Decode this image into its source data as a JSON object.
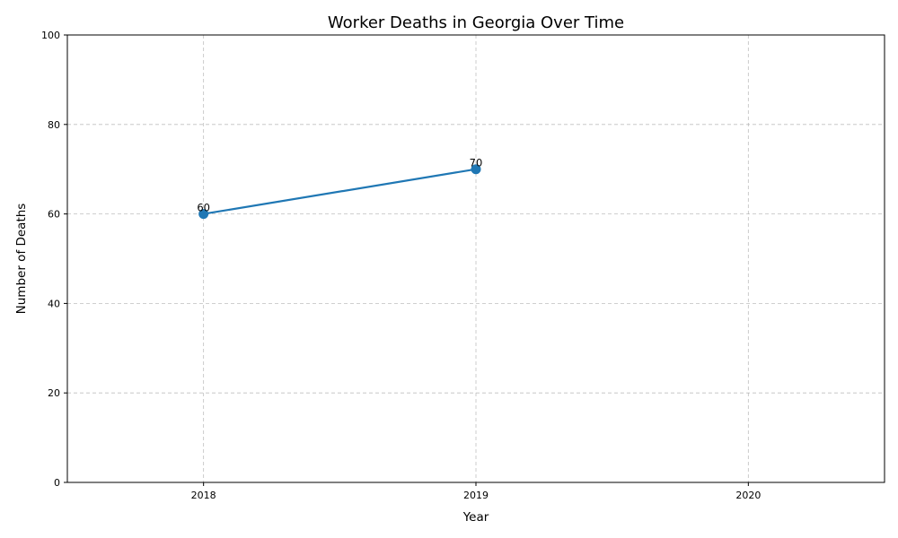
{
  "chart_data": {
    "type": "line",
    "title": "Worker Deaths in Georgia Over Time",
    "xlabel": "Year",
    "ylabel": "Number of Deaths",
    "x_ticks": [
      "2018",
      "2019",
      "2020"
    ],
    "y_ticks": [
      "0",
      "20",
      "40",
      "60",
      "80",
      "100"
    ],
    "xlim": [
      2017.5,
      2020.5
    ],
    "ylim": [
      0,
      100
    ],
    "grid": true,
    "color": "#1f77b4",
    "series": [
      {
        "x": [
          2018,
          2019
        ],
        "y": [
          60,
          70
        ],
        "labels": [
          "60",
          "70"
        ]
      }
    ]
  }
}
